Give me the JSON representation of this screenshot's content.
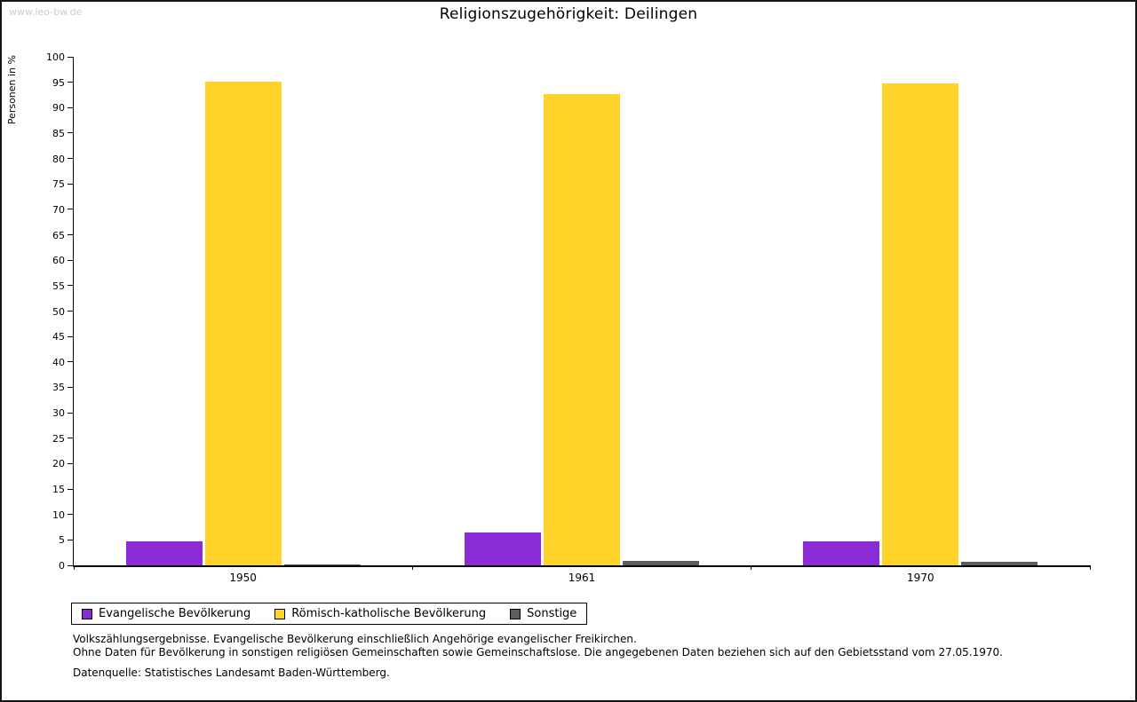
{
  "watermark": "www.leo-bw.de",
  "title": "Religionszugehörigkeit: Deilingen",
  "chart_data": {
    "type": "bar",
    "title": "Religionszugehörigkeit: Deilingen",
    "xlabel": "",
    "ylabel": "Personen in %",
    "ylim": [
      0,
      100
    ],
    "ytick_step": 5,
    "grid": false,
    "legend_position": "bottom-left",
    "categories": [
      "1950",
      "1961",
      "1970"
    ],
    "series": [
      {
        "name": "Evangelische Bevölkerung",
        "color": "#8b2bd6",
        "values": [
          4.8,
          6.5,
          4.8
        ]
      },
      {
        "name": "Römisch-katholische Bevölkerung",
        "color": "#ffd32a",
        "values": [
          95.2,
          92.6,
          94.7
        ]
      },
      {
        "name": "Sonstige",
        "color": "#5e5e5e",
        "values": [
          0.2,
          0.9,
          0.7
        ]
      }
    ]
  },
  "footnotes": [
    "Volkszählungsergebnisse. Evangelische Bevölkerung einschließlich Angehörige evangelischer Freikirchen.",
    "Ohne Daten für Bevölkerung in sonstigen religiösen Gemeinschaften sowie Gemeinschaftslose. Die angegebenen Daten beziehen sich auf den Gebietsstand vom 27.05.1970.",
    "Datenquelle: Statistisches Landesamt Baden-Württemberg."
  ]
}
